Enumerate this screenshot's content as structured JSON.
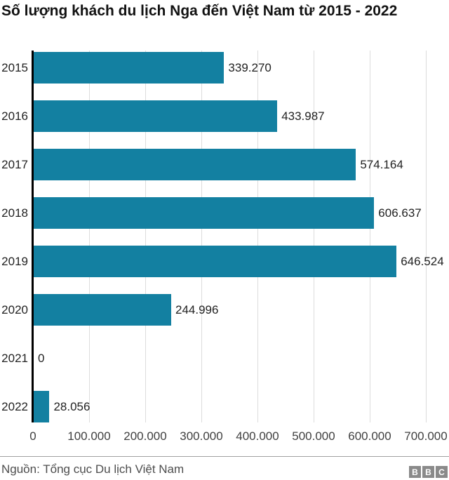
{
  "chart_data": {
    "type": "bar",
    "orientation": "horizontal",
    "title": "Số lượng khách du lịch Nga đến Việt Nam từ 2015 - 2022",
    "categories": [
      "2015",
      "2016",
      "2017",
      "2018",
      "2019",
      "2020",
      "2021",
      "2022"
    ],
    "values": [
      339270,
      433987,
      574164,
      606637,
      646524,
      244996,
      0,
      28056
    ],
    "value_labels": [
      "339.270",
      "433.987",
      "574.164",
      "606.637",
      "646.524",
      "244.996",
      "0",
      "28.056"
    ],
    "x_tick_labels": [
      "0",
      "100.000",
      "200.000",
      "300.000",
      "400.000",
      "500.000",
      "600.000",
      "700.000"
    ],
    "x_tick_values": [
      0,
      100000,
      200000,
      300000,
      400000,
      500000,
      600000,
      700000
    ],
    "xlim": [
      0,
      700000
    ],
    "grid": true,
    "legend": false,
    "bar_color": "#1380a1"
  },
  "footer": {
    "source": "Nguồn: Tổng cục Du lịch Việt Nam",
    "logo_letters": [
      "B",
      "B",
      "C"
    ],
    "logo_color": "#8a8a8a"
  }
}
